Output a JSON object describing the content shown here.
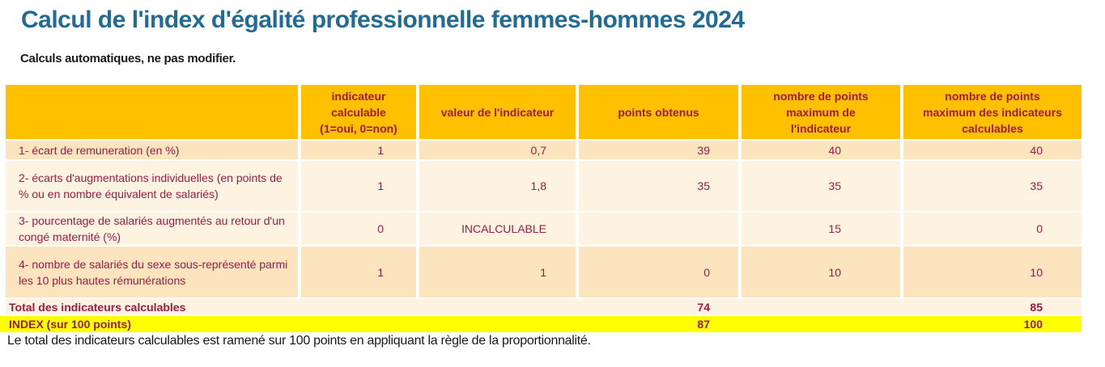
{
  "page": {
    "title": "Calcul de l'index d'égalité professionnelle femmes-hommes 2024",
    "subtitle": "Calculs automatiques, ne pas modifier.",
    "footnote": "Le total des indicateurs calculables est ramené sur 100 points en appliquant la règle de la proportionnalité."
  },
  "colors": {
    "title_blue": "#216B94",
    "header_gold": "#FFC000",
    "maroon_text": "#A01A45",
    "row_peach": "#FBE4BE",
    "row_cream": "#FDF3E0",
    "index_yellow": "#FFFF00"
  },
  "table": {
    "columns": {
      "indicator": "",
      "calculable": "indicateur\ncalculable\n(1=oui, 0=non)",
      "valeur": "valeur de l'indicateur",
      "points": "points obtenus",
      "max_indicateur": "nombre de points\nmaximum de\nl'indicateur",
      "max_calculables": "nombre de points\nmaximum des indicateurs\ncalculables"
    },
    "rows": [
      {
        "label": "1- écart de remuneration (en %)",
        "calculable": "1",
        "valeur": "0,7",
        "points": "39",
        "max_indicateur": "40",
        "max_calculables": "40"
      },
      {
        "label": "2- écarts d'augmentations individuelles (en points de % ou en nombre équivalent de salariés)",
        "calculable": "1",
        "valeur": "1,8",
        "points": "35",
        "max_indicateur": "35",
        "max_calculables": "35"
      },
      {
        "label": "3- pourcentage de salariés augmentés au retour d'un congé maternité (%)",
        "calculable": "0",
        "valeur": "INCALCULABLE",
        "points": "",
        "max_indicateur": "15",
        "max_calculables": "0"
      },
      {
        "label": "4- nombre de salariés du sexe sous-représenté parmi les 10 plus hautes rémunérations",
        "calculable": "1",
        "valeur": "1",
        "points": "0",
        "max_indicateur": "10",
        "max_calculables": "10"
      }
    ],
    "total_row": {
      "label": "Total des indicateurs calculables",
      "points": "74",
      "max_calculables": "85"
    },
    "index_row": {
      "label": "INDEX (sur 100 points)",
      "points": "87",
      "max_calculables": "100"
    }
  }
}
